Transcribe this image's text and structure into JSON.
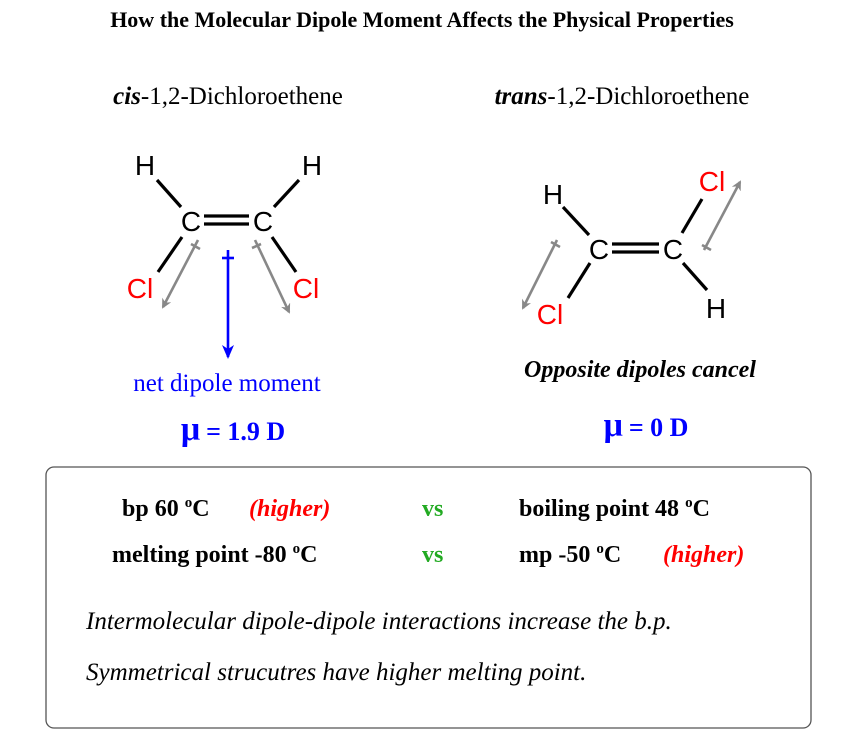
{
  "title": "How the Molecular Dipole Moment Affects the Physical Properties",
  "colors": {
    "chlorine": "#ff0000",
    "dipole": "#888888",
    "net_dipole": "#0000ff",
    "vs": "#22aa22",
    "higher": "#ff0000"
  },
  "cis": {
    "name_prefix": "cis",
    "name_rest": "-1,2-Dichloroethene",
    "atoms": {
      "h1": "H",
      "h2": "H",
      "c1": "C",
      "c2": "C",
      "cl1": "Cl",
      "cl2": "Cl"
    },
    "net_label": "net dipole moment",
    "mu_symbol": "μ",
    "mu_value": "= 1.9 D"
  },
  "trans": {
    "name_prefix": "trans",
    "name_rest": "-1,2-Dichloroethene",
    "atoms": {
      "h1": "H",
      "h2": "H",
      "c1": "C",
      "c2": "C",
      "cl1": "Cl",
      "cl2": "Cl"
    },
    "note": "Opposite dipoles cancel",
    "mu_symbol": "μ",
    "mu_value": "= 0 D"
  },
  "comparison": {
    "row1": {
      "left": "bp 60 ",
      "left_deg": "o",
      "left_unit": "C",
      "left_tag": "(higher)",
      "vs": "vs",
      "right": "boiling point 48 ",
      "right_deg": "o",
      "right_unit": "C"
    },
    "row2": {
      "left": "melting point -80 ",
      "left_deg": "o",
      "left_unit": "C",
      "vs": "vs",
      "right": "mp -50 ",
      "right_deg": "o",
      "right_unit": "C",
      "right_tag": "(higher)"
    },
    "note1": "Intermolecular dipole-dipole interactions increase the b.p.",
    "note2": "Symmetrical strucutres have higher melting point."
  }
}
